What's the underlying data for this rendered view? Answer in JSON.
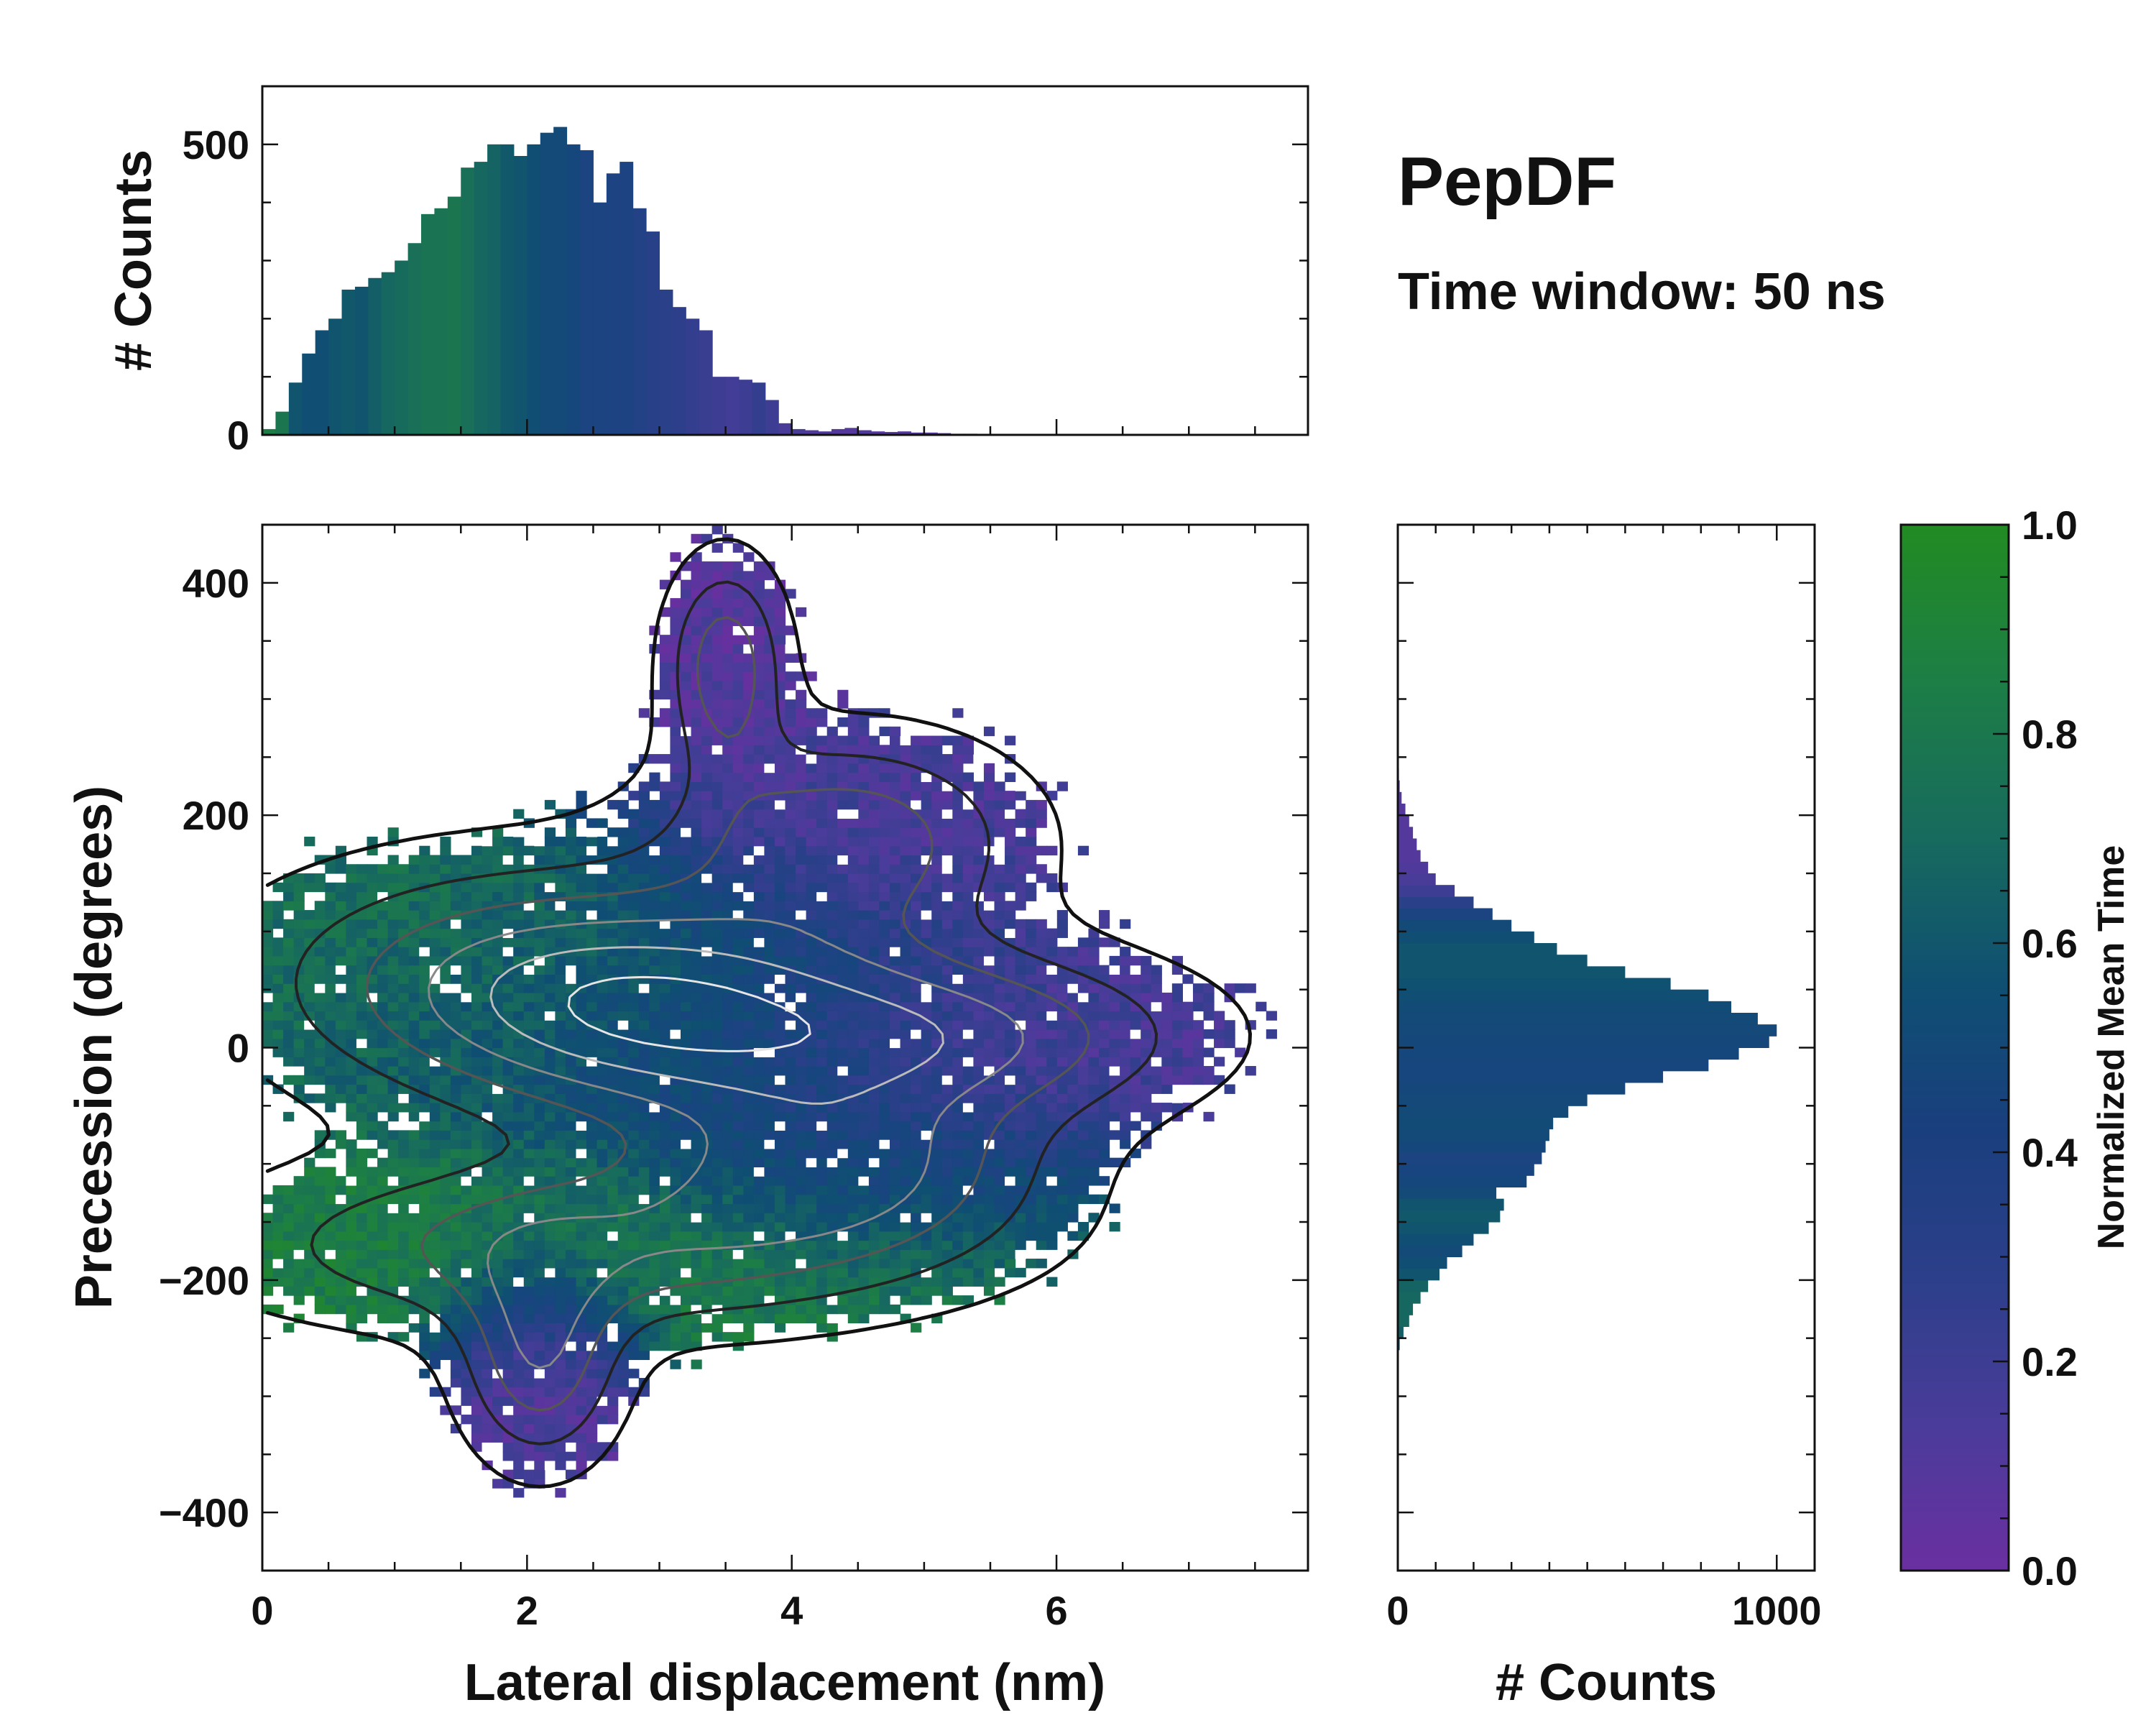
{
  "title": "PepDF",
  "subtitle": "Time window: 50 ns",
  "colors": {
    "colormap": [
      "#6a2fa0",
      "#4a3c9a",
      "#2c3f8a",
      "#17457e",
      "#0f4f72",
      "#176a5e",
      "#1d7e46",
      "#228b22"
    ]
  },
  "chart_data": [
    {
      "id": "top-histogram",
      "type": "bar",
      "ylabel": "# Counts",
      "xlim": [
        0,
        7.9
      ],
      "ylim": [
        0,
        600
      ],
      "yticks": [
        0,
        500
      ],
      "note": "Histogram of lateral displacement, colored by normalized mean time",
      "bin_edges_start": 0,
      "bin_width": 0.1,
      "values": [
        10,
        40,
        90,
        140,
        180,
        200,
        250,
        255,
        270,
        280,
        300,
        330,
        380,
        390,
        410,
        460,
        470,
        500,
        500,
        480,
        500,
        520,
        530,
        500,
        490,
        400,
        450,
        470,
        390,
        350,
        250,
        220,
        200,
        180,
        100,
        100,
        95,
        90,
        60,
        20,
        10,
        8,
        6,
        10,
        12,
        8,
        6,
        5,
        6,
        4,
        4,
        3,
        2,
        2,
        1,
        1,
        1,
        1,
        1
      ],
      "color_values": [
        0.85,
        0.8,
        0.6,
        0.55,
        0.55,
        0.6,
        0.62,
        0.6,
        0.65,
        0.7,
        0.72,
        0.75,
        0.78,
        0.78,
        0.8,
        0.75,
        0.7,
        0.68,
        0.62,
        0.6,
        0.55,
        0.5,
        0.5,
        0.45,
        0.4,
        0.4,
        0.38,
        0.38,
        0.35,
        0.32,
        0.3,
        0.28,
        0.25,
        0.22,
        0.2,
        0.18,
        0.2,
        0.25,
        0.2,
        0.15,
        0.15,
        0.12,
        0.12,
        0.1,
        0.1,
        0.12,
        0.1,
        0.1,
        0.1,
        0.1,
        0.1,
        0.1,
        0.1,
        0.1,
        0.1,
        0.1,
        0.1,
        0.1,
        0.1
      ]
    },
    {
      "id": "main-heatmap",
      "type": "heatmap",
      "xlabel": "Lateral displacement (nm)",
      "ylabel": "Precession (degrees)",
      "xlim": [
        0,
        7.9
      ],
      "ylim": [
        -450,
        450
      ],
      "xticks": [
        0,
        2,
        4,
        6
      ],
      "yticks": [
        -400,
        -200,
        0,
        200,
        400
      ],
      "ytick_labels": [
        "−400",
        "−200",
        "0",
        "200",
        "400"
      ],
      "note": "2D histogram colored by normalized mean time, with count contours",
      "blobs": [
        {
          "cx": 2.0,
          "cy": 60,
          "sx": 1.4,
          "sy": 70,
          "c": 0.75
        },
        {
          "cx": 3.2,
          "cy": 20,
          "sx": 1.2,
          "sy": 60,
          "c": 0.45
        },
        {
          "cx": 2.5,
          "cy": -170,
          "sx": 1.8,
          "sy": 50,
          "c": 0.85
        },
        {
          "cx": 4.4,
          "cy": 180,
          "sx": 0.9,
          "sy": 60,
          "c": 0.15
        },
        {
          "cx": 5.3,
          "cy": 10,
          "sx": 1.2,
          "sy": 50,
          "c": 0.15
        },
        {
          "cx": 4.4,
          "cy": -100,
          "sx": 1.0,
          "sy": 50,
          "c": 0.4
        },
        {
          "cx": 3.5,
          "cy": 330,
          "sx": 0.3,
          "sy": 60,
          "c": 0.1
        },
        {
          "cx": 2.1,
          "cy": -270,
          "sx": 0.4,
          "sy": 60,
          "c": 0.12
        }
      ]
    },
    {
      "id": "right-histogram",
      "type": "bar",
      "orientation": "horizontal",
      "xlabel": "# Counts",
      "xlim": [
        0,
        1100
      ],
      "xticks": [
        0,
        1000
      ],
      "ylim": [
        -450,
        450
      ],
      "note": "Histogram of precession, colored by normalized mean time",
      "bin_start": -260,
      "bin_width": 10,
      "values": [
        5,
        15,
        30,
        40,
        60,
        80,
        110,
        130,
        170,
        200,
        240,
        270,
        280,
        260,
        340,
        360,
        380,
        390,
        400,
        410,
        450,
        500,
        600,
        700,
        820,
        900,
        980,
        1000,
        950,
        880,
        820,
        720,
        600,
        500,
        420,
        360,
        300,
        250,
        200,
        150,
        100,
        80,
        60,
        50,
        40,
        30,
        20,
        10,
        5,
        3,
        2,
        1
      ],
      "color_values": [
        0.6,
        0.65,
        0.7,
        0.7,
        0.7,
        0.68,
        0.6,
        0.55,
        0.5,
        0.55,
        0.6,
        0.62,
        0.6,
        0.5,
        0.45,
        0.42,
        0.4,
        0.45,
        0.5,
        0.52,
        0.5,
        0.48,
        0.46,
        0.44,
        0.44,
        0.45,
        0.46,
        0.48,
        0.5,
        0.52,
        0.55,
        0.58,
        0.6,
        0.6,
        0.6,
        0.55,
        0.5,
        0.4,
        0.3,
        0.2,
        0.15,
        0.12,
        0.1,
        0.1,
        0.1,
        0.1,
        0.1,
        0.1,
        0.1,
        0.1,
        0.1,
        0.1
      ]
    },
    {
      "id": "colorbar",
      "type": "colorbar",
      "label": "Normalized Mean Time",
      "range": [
        0,
        1
      ],
      "ticks": [
        0.0,
        0.2,
        0.4,
        0.6,
        0.8,
        1.0
      ],
      "tick_labels": [
        "0.0",
        "0.2",
        "0.4",
        "0.6",
        "0.8",
        "1.0"
      ]
    }
  ]
}
